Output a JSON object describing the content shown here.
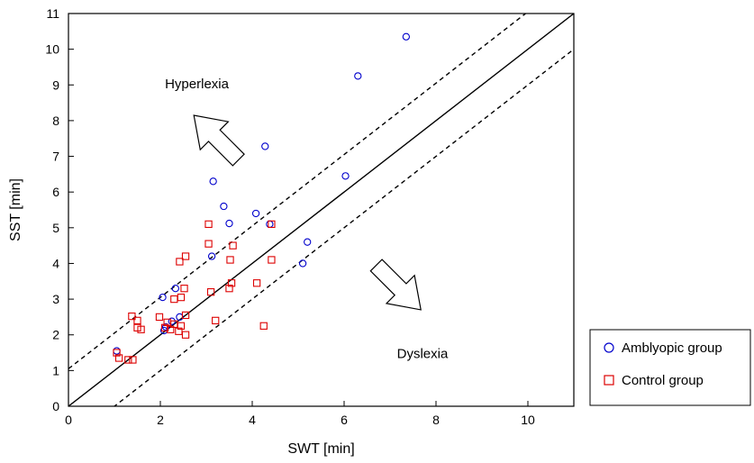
{
  "chart_data": {
    "type": "scatter",
    "xlabel": "SWT [min]",
    "ylabel": "SST [min]",
    "xlim": [
      0,
      11
    ],
    "ylim": [
      0,
      11
    ],
    "x_ticks": [
      0,
      2,
      4,
      6,
      8,
      10
    ],
    "y_ticks": [
      0,
      1,
      2,
      3,
      4,
      5,
      6,
      7,
      8,
      9,
      10,
      11
    ],
    "grid": false,
    "legend_position": "outside-right-bottom",
    "series": [
      {
        "name": "Amblyopic group",
        "marker": "circle",
        "color": "#0000cc",
        "points": [
          [
            7.35,
            10.35
          ],
          [
            6.3,
            9.25
          ],
          [
            4.28,
            7.28
          ],
          [
            6.03,
            6.45
          ],
          [
            3.15,
            6.3
          ],
          [
            3.38,
            5.6
          ],
          [
            4.08,
            5.4
          ],
          [
            3.5,
            5.12
          ],
          [
            4.38,
            5.1
          ],
          [
            5.2,
            4.6
          ],
          [
            3.12,
            4.2
          ],
          [
            5.1,
            4.0
          ],
          [
            2.33,
            3.3
          ],
          [
            2.05,
            3.05
          ],
          [
            2.42,
            2.5
          ],
          [
            2.25,
            2.38
          ],
          [
            2.12,
            2.22
          ],
          [
            2.08,
            2.12
          ],
          [
            1.05,
            1.55
          ]
        ]
      },
      {
        "name": "Control group",
        "marker": "square",
        "color": "#dd0000",
        "points": [
          [
            3.05,
            5.1
          ],
          [
            4.42,
            5.1
          ],
          [
            3.05,
            4.55
          ],
          [
            3.58,
            4.5
          ],
          [
            2.55,
            4.2
          ],
          [
            2.42,
            4.05
          ],
          [
            3.52,
            4.1
          ],
          [
            4.42,
            4.1
          ],
          [
            3.55,
            3.45
          ],
          [
            4.1,
            3.45
          ],
          [
            3.5,
            3.3
          ],
          [
            2.52,
            3.3
          ],
          [
            3.1,
            3.2
          ],
          [
            2.45,
            3.05
          ],
          [
            2.3,
            3.0
          ],
          [
            1.38,
            2.52
          ],
          [
            2.55,
            2.55
          ],
          [
            1.98,
            2.5
          ],
          [
            3.2,
            2.4
          ],
          [
            1.5,
            2.4
          ],
          [
            2.15,
            2.35
          ],
          [
            2.3,
            2.3
          ],
          [
            2.45,
            2.25
          ],
          [
            1.5,
            2.2
          ],
          [
            4.25,
            2.25
          ],
          [
            1.58,
            2.15
          ],
          [
            2.1,
            2.2
          ],
          [
            2.22,
            2.15
          ],
          [
            2.4,
            2.1
          ],
          [
            2.55,
            2.0
          ],
          [
            1.05,
            1.5
          ],
          [
            1.1,
            1.35
          ],
          [
            1.3,
            1.3
          ],
          [
            1.4,
            1.3
          ]
        ]
      }
    ],
    "reference_lines": [
      {
        "style": "solid",
        "slope": 1,
        "intercept": 0
      },
      {
        "style": "dashed",
        "slope": 1,
        "intercept": 1.05
      },
      {
        "style": "dashed",
        "slope": 1,
        "intercept": -1.0
      }
    ],
    "annotations": [
      {
        "text": "Hyperlexia",
        "x": 2.1,
        "y": 8.9,
        "arrow": "up-left"
      },
      {
        "text": "Dyslexia",
        "x": 7.15,
        "y": 1.35,
        "arrow": "down-right"
      }
    ]
  }
}
